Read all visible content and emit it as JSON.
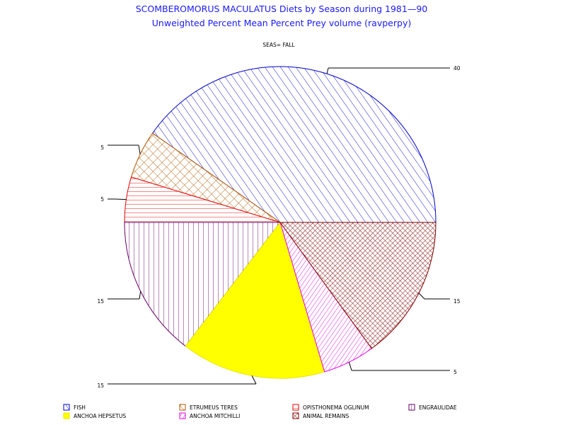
{
  "title": "SCOMBEROMORUS MACULATUS Diets by Season during 1981—90",
  "subtitle": "Unweighted Percent Mean Percent Prey  volume (ravperpy)",
  "group_label": "SEAS= FALL",
  "colors": {
    "fish": "#0000cc",
    "etrumeus": "#b35900",
    "opisthonema": "#e60000",
    "engraulidae": "#660066",
    "anchoa_hepsetus": "#ffff00",
    "anchoa_mitchilli": "#e600e6",
    "animal_remains": "#800000",
    "title": "#1a1aff"
  },
  "chart_data": {
    "type": "pie",
    "title": "SCOMBEROMORUS MACULATUS Diets by Season during 1981—90",
    "subtitle": "Unweighted Percent Mean Percent Prey  volume (ravperpy)",
    "slices": [
      {
        "name": "FISH",
        "value": 40.3,
        "label": "40",
        "color": "#0000cc",
        "pattern": "diag-right"
      },
      {
        "name": "ETRUMEUS TERES",
        "value": 5.0,
        "label": "5",
        "color": "#b35900",
        "pattern": "cross-diag"
      },
      {
        "name": "OPISTHONEMA OGLINUM",
        "value": 4.7,
        "label": "5",
        "color": "#e60000",
        "pattern": "horizontal"
      },
      {
        "name": "ENGRAULIDAE",
        "value": 14.6,
        "label": "15",
        "color": "#660066",
        "pattern": "vertical"
      },
      {
        "name": "ANCHOA HEPSETUS",
        "value": 15.0,
        "label": "15",
        "color": "#ffff00",
        "pattern": "solid"
      },
      {
        "name": "ANCHOA MITCHILLI",
        "value": 5.4,
        "label": "5",
        "color": "#e600e6",
        "pattern": "diag-left"
      },
      {
        "name": "ANIMAL REMAINS",
        "value": 15.0,
        "label": "15",
        "color": "#800000",
        "pattern": "cross-fine"
      }
    ],
    "start_angle_deg": 0,
    "direction": "counterclockwise",
    "legend_position": "bottom"
  }
}
